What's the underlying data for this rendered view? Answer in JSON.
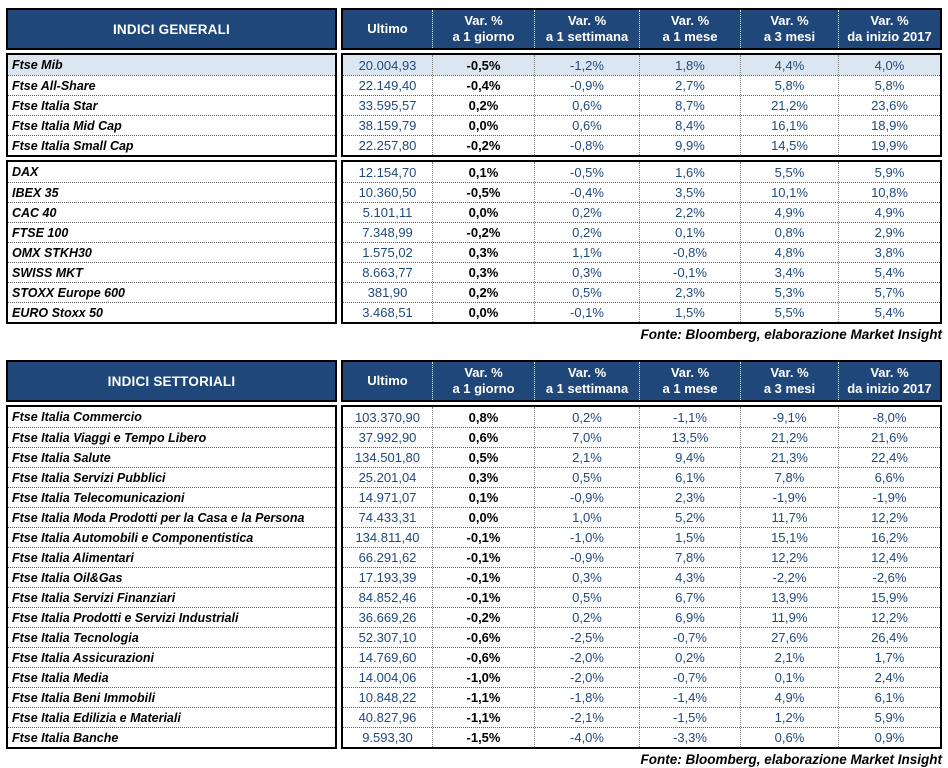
{
  "colors": {
    "header_bg": "#1F4779",
    "header_text": "#FFFFFF",
    "highlight_row": "#DCE6F1",
    "value_text": "#1F497D",
    "day_col_text": "#000000"
  },
  "tables": [
    {
      "title": "INDICI GENERALI",
      "columns": [
        {
          "line1": "Ultimo",
          "line2": ""
        },
        {
          "line1": "Var. %",
          "line2": "a 1 giorno"
        },
        {
          "line1": "Var. %",
          "line2": "a 1 settimana"
        },
        {
          "line1": "Var. %",
          "line2": "a 1 mese"
        },
        {
          "line1": "Var. %",
          "line2": "a 3 mesi"
        },
        {
          "line1": "Var. %",
          "line2": "da inizio 2017"
        }
      ],
      "groups": [
        {
          "rows": [
            {
              "name": "Ftse Mib",
              "ultimo": "20.004,93",
              "d1": "-0,5%",
              "w1": "-1,2%",
              "m1": "1,8%",
              "m3": "4,4%",
              "ytd": "4,0%",
              "highlight": true
            },
            {
              "name": "Ftse All-Share",
              "ultimo": "22.149,40",
              "d1": "-0,4%",
              "w1": "-0,9%",
              "m1": "2,7%",
              "m3": "5,8%",
              "ytd": "5,8%",
              "highlight": false
            },
            {
              "name": "Ftse Italia Star",
              "ultimo": "33.595,57",
              "d1": "0,2%",
              "w1": "0,6%",
              "m1": "8,7%",
              "m3": "21,2%",
              "ytd": "23,6%",
              "highlight": false
            },
            {
              "name": "Ftse Italia Mid Cap",
              "ultimo": "38.159,79",
              "d1": "0,0%",
              "w1": "0,6%",
              "m1": "8,4%",
              "m3": "16,1%",
              "ytd": "18,9%",
              "highlight": false
            },
            {
              "name": "Ftse Italia Small Cap",
              "ultimo": "22.257,80",
              "d1": "-0,2%",
              "w1": "-0,8%",
              "m1": "9,9%",
              "m3": "14,5%",
              "ytd": "19,9%",
              "highlight": false
            }
          ]
        },
        {
          "rows": [
            {
              "name": "DAX",
              "ultimo": "12.154,70",
              "d1": "0,1%",
              "w1": "-0,5%",
              "m1": "1,6%",
              "m3": "5,5%",
              "ytd": "5,9%",
              "highlight": false
            },
            {
              "name": "IBEX 35",
              "ultimo": "10.360,50",
              "d1": "-0,5%",
              "w1": "-0,4%",
              "m1": "3,5%",
              "m3": "10,1%",
              "ytd": "10,8%",
              "highlight": false
            },
            {
              "name": "CAC 40",
              "ultimo": "5.101,11",
              "d1": "0,0%",
              "w1": "0,2%",
              "m1": "2,2%",
              "m3": "4,9%",
              "ytd": "4,9%",
              "highlight": false
            },
            {
              "name": "FTSE 100",
              "ultimo": "7.348,99",
              "d1": "-0,2%",
              "w1": "0,2%",
              "m1": "0,1%",
              "m3": "0,8%",
              "ytd": "2,9%",
              "highlight": false
            },
            {
              "name": "OMX STKH30",
              "ultimo": "1.575,02",
              "d1": "0,3%",
              "w1": "1,1%",
              "m1": "-0,8%",
              "m3": "4,8%",
              "ytd": "3,8%",
              "highlight": false
            },
            {
              "name": "SWISS MKT",
              "ultimo": "8.663,77",
              "d1": "0,3%",
              "w1": "0,3%",
              "m1": "-0,1%",
              "m3": "3,4%",
              "ytd": "5,4%",
              "highlight": false
            },
            {
              "name": "STOXX Europe 600",
              "ultimo": "381,90",
              "d1": "0,2%",
              "w1": "0,5%",
              "m1": "2,3%",
              "m3": "5,3%",
              "ytd": "5,7%",
              "highlight": false
            },
            {
              "name": "EURO Stoxx 50",
              "ultimo": "3.468,51",
              "d1": "0,0%",
              "w1": "-0,1%",
              "m1": "1,5%",
              "m3": "5,5%",
              "ytd": "5,4%",
              "highlight": false
            }
          ]
        }
      ],
      "source": "Fonte: Bloomberg, elaborazione Market Insight"
    },
    {
      "title": "INDICI SETTORIALI",
      "columns": [
        {
          "line1": "Ultimo",
          "line2": ""
        },
        {
          "line1": "Var. %",
          "line2": "a 1 giorno"
        },
        {
          "line1": "Var. %",
          "line2": "a 1 settimana"
        },
        {
          "line1": "Var. %",
          "line2": "a 1 mese"
        },
        {
          "line1": "Var. %",
          "line2": "a 3 mesi"
        },
        {
          "line1": "Var. %",
          "line2": "da inizio 2017"
        }
      ],
      "groups": [
        {
          "rows": [
            {
              "name": "Ftse Italia Commercio",
              "ultimo": "103.370,90",
              "d1": "0,8%",
              "w1": "0,2%",
              "m1": "-1,1%",
              "m3": "-9,1%",
              "ytd": "-8,0%",
              "highlight": false
            },
            {
              "name": "Ftse Italia Viaggi e Tempo Libero",
              "ultimo": "37.992,90",
              "d1": "0,6%",
              "w1": "7,0%",
              "m1": "13,5%",
              "m3": "21,2%",
              "ytd": "21,6%",
              "highlight": false
            },
            {
              "name": "Ftse Italia Salute",
              "ultimo": "134.501,80",
              "d1": "0,5%",
              "w1": "2,1%",
              "m1": "9,4%",
              "m3": "21,3%",
              "ytd": "22,4%",
              "highlight": false
            },
            {
              "name": "Ftse Italia Servizi Pubblici",
              "ultimo": "25.201,04",
              "d1": "0,3%",
              "w1": "0,5%",
              "m1": "6,1%",
              "m3": "7,8%",
              "ytd": "6,6%",
              "highlight": false
            },
            {
              "name": "Ftse Italia Telecomunicazioni",
              "ultimo": "14.971,07",
              "d1": "0,1%",
              "w1": "-0,9%",
              "m1": "2,3%",
              "m3": "-1,9%",
              "ytd": "-1,9%",
              "highlight": false
            },
            {
              "name": "Ftse Italia Moda Prodotti per la Casa e la Persona",
              "ultimo": "74.433,31",
              "d1": "0,0%",
              "w1": "1,0%",
              "m1": "5,2%",
              "m3": "11,7%",
              "ytd": "12,2%",
              "highlight": false
            },
            {
              "name": "Ftse Italia Automobili e Componentistica",
              "ultimo": "134.811,40",
              "d1": "-0,1%",
              "w1": "-1,0%",
              "m1": "1,5%",
              "m3": "15,1%",
              "ytd": "16,2%",
              "highlight": false
            },
            {
              "name": "Ftse Italia Alimentari",
              "ultimo": "66.291,62",
              "d1": "-0,1%",
              "w1": "-0,9%",
              "m1": "7,8%",
              "m3": "12,2%",
              "ytd": "12,4%",
              "highlight": false
            },
            {
              "name": "Ftse Italia Oil&Gas",
              "ultimo": "17.193,39",
              "d1": "-0,1%",
              "w1": "0,3%",
              "m1": "4,3%",
              "m3": "-2,2%",
              "ytd": "-2,6%",
              "highlight": false
            },
            {
              "name": "Ftse Italia Servizi Finanziari",
              "ultimo": "84.852,46",
              "d1": "-0,1%",
              "w1": "0,5%",
              "m1": "6,7%",
              "m3": "13,9%",
              "ytd": "15,9%",
              "highlight": false
            },
            {
              "name": "Ftse Italia Prodotti e Servizi Industriali",
              "ultimo": "36.669,26",
              "d1": "-0,2%",
              "w1": "0,2%",
              "m1": "6,9%",
              "m3": "11,9%",
              "ytd": "12,2%",
              "highlight": false
            },
            {
              "name": "Ftse Italia Tecnologia",
              "ultimo": "52.307,10",
              "d1": "-0,6%",
              "w1": "-2,5%",
              "m1": "-0,7%",
              "m3": "27,6%",
              "ytd": "26,4%",
              "highlight": false
            },
            {
              "name": "Ftse Italia Assicurazioni",
              "ultimo": "14.769,60",
              "d1": "-0,6%",
              "w1": "-2,0%",
              "m1": "0,2%",
              "m3": "2,1%",
              "ytd": "1,7%",
              "highlight": false
            },
            {
              "name": "Ftse Italia Media",
              "ultimo": "14.004,06",
              "d1": "-1,0%",
              "w1": "-2,0%",
              "m1": "-0,7%",
              "m3": "0,1%",
              "ytd": "2,4%",
              "highlight": false
            },
            {
              "name": "Ftse Italia Beni Immobili",
              "ultimo": "10.848,22",
              "d1": "-1,1%",
              "w1": "-1,8%",
              "m1": "-1,4%",
              "m3": "4,9%",
              "ytd": "6,1%",
              "highlight": false
            },
            {
              "name": "Ftse Italia Edilizia e Materiali",
              "ultimo": "40.827,96",
              "d1": "-1,1%",
              "w1": "-2,1%",
              "m1": "-1,5%",
              "m3": "1,2%",
              "ytd": "5,9%",
              "highlight": false
            },
            {
              "name": "Ftse Italia Banche",
              "ultimo": "9.593,30",
              "d1": "-1,5%",
              "w1": "-4,0%",
              "m1": "-3,3%",
              "m3": "0,6%",
              "ytd": "0,9%",
              "highlight": false
            }
          ]
        }
      ],
      "source": "Fonte: Bloomberg, elaborazione Market Insight"
    }
  ]
}
